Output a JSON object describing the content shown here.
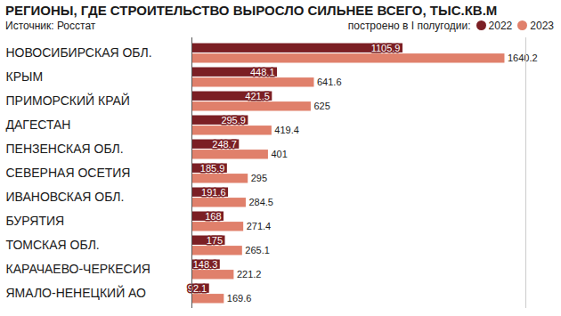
{
  "chart_data": {
    "type": "bar",
    "orientation": "horizontal",
    "title": "РЕГИОНЫ, ГДЕ СТРОИТЕЛЬСТВО ВЫРОСЛО СИЛЬНЕЕ ВСЕГО, ТЫС.КВ.М",
    "subtitle": "Источник: Росстат",
    "annotations": [
      "построено в I полугодии:"
    ],
    "categories": [
      "НОВОСИБИРСКАЯ ОБЛ.",
      "КРЫМ",
      "ПРИМОРСКИЙ КРАЙ",
      "ДАГЕСТАН",
      "ПЕНЗЕНСКАЯ ОБЛ.",
      "СЕВЕРНАЯ ОСЕТИЯ",
      "ИВАНОВСКАЯ ОБЛ.",
      "БУРЯТИЯ",
      "ТОМСКАЯ ОБЛ.",
      "КАРАЧАЕВО-ЧЕРКЕСИЯ",
      "ЯМАЛО-НЕНЕЦКИЙ АО"
    ],
    "series": [
      {
        "name": "2022",
        "color": "#7b1f24",
        "values": [
          1105.9,
          448.1,
          421.5,
          295.9,
          248.7,
          185.9,
          191.6,
          168,
          175,
          148.3,
          92.1
        ]
      },
      {
        "name": "2023",
        "color": "#e0806b",
        "values": [
          1640.2,
          641.6,
          625,
          419.4,
          401,
          295,
          284.5,
          271.4,
          265.1,
          221.2,
          169.6
        ]
      }
    ],
    "xlim": [
      0,
      1750
    ],
    "xticks": [],
    "tick_labels": false,
    "grid": false,
    "legend": "top-right",
    "data_labels": true
  }
}
